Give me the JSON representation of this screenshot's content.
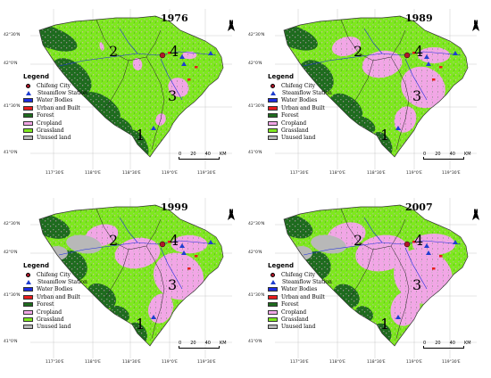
{
  "panels": [
    {
      "year": "1976",
      "palette": "p1976"
    },
    {
      "year": "1989",
      "palette": "p1989"
    },
    {
      "year": "1999",
      "palette": "p1999"
    },
    {
      "year": "2007",
      "palette": "p2007"
    }
  ],
  "latitude_labels": [
    "42°30'N",
    "42°0'N",
    "41°30'N",
    "41°0'N"
  ],
  "longitude_labels": [
    "117°30'E",
    "118°0'E",
    "118°30'E",
    "119°0'E",
    "119°30'E"
  ],
  "region_labels": [
    "1",
    "2",
    "3",
    "4"
  ],
  "north_label": "N",
  "scale_bar": {
    "ticks": [
      "0",
      "20",
      "40"
    ],
    "unit": "KM"
  },
  "legend": {
    "title": "Legend",
    "items": [
      {
        "label": "Chifeng City",
        "symbol": "dot",
        "color": "#b0172a"
      },
      {
        "label": "Steamflow Station",
        "symbol": "triangle",
        "color": "#1f3ecf"
      },
      {
        "label": "Water Bodies",
        "symbol": "box",
        "color": "#1b2be0"
      },
      {
        "label": "Urban and Built",
        "symbol": "box",
        "color": "#e81c1c"
      },
      {
        "label": "Forest",
        "symbol": "box",
        "color": "#1e6b1e"
      },
      {
        "label": "Cropland",
        "symbol": "box",
        "color": "#f2a6e6"
      },
      {
        "label": "Grassland",
        "symbol": "box",
        "color": "#7ee81e"
      },
      {
        "label": "Unused land",
        "symbol": "box",
        "color": "#b8b8b8"
      }
    ]
  },
  "palettes": {
    "p1976": {
      "forest": "#1e6b1e",
      "grass": "#7ee81e",
      "crop": "#f2a6e6",
      "unused": "#b8b8b8"
    },
    "p1989": {
      "forest": "#1e6b1e",
      "grass": "#7ee81e",
      "crop": "#f2a6e6",
      "unused": "#b8b8b8"
    },
    "p1999": {
      "forest": "#1e6b1e",
      "grass": "#7ee81e",
      "crop": "#f2a6e6",
      "unused": "#b8b8b8"
    },
    "p2007": {
      "forest": "#1e6b1e",
      "grass": "#7ee81e",
      "crop": "#f2a6e6",
      "unused": "#b8b8b8"
    }
  }
}
